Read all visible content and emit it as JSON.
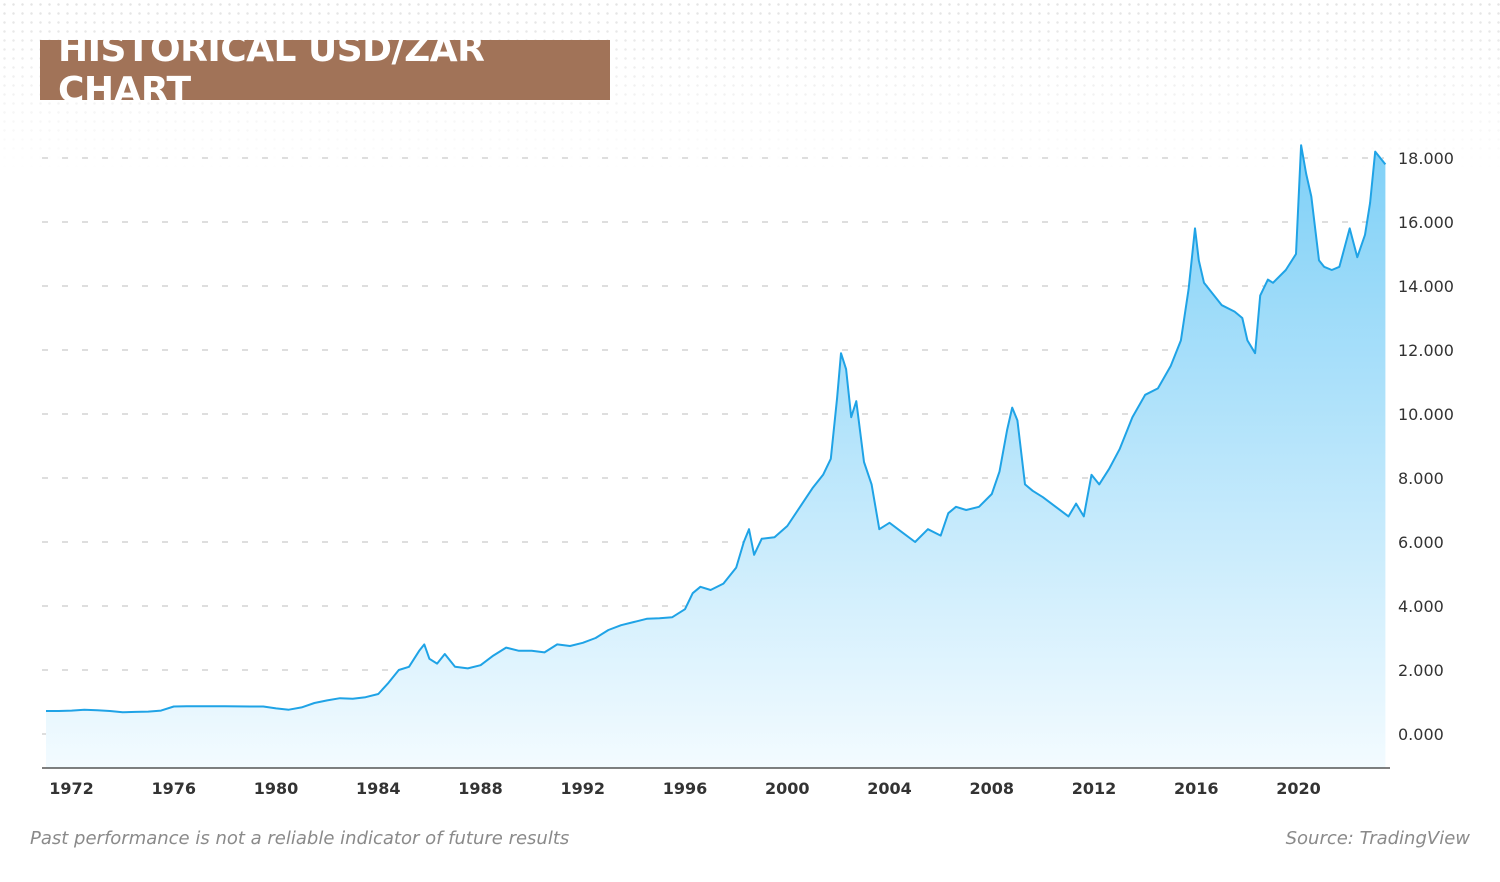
{
  "title": "HISTORICAL USD/ZAR CHART",
  "disclaimer": "Past performance is not a reliable indicator of future results",
  "source": "Source: TradingView",
  "colors": {
    "title_bg": "#a17358",
    "line": "#1fa3e6",
    "fill_top": "#7fd0f7",
    "fill_bottom": "#f3fbff",
    "grid": "#bdbdbd"
  },
  "chart_data": {
    "type": "area",
    "title": "HISTORICAL USD/ZAR CHART",
    "xlabel": "",
    "ylabel": "",
    "ylim": [
      0,
      18
    ],
    "xlim": [
      1971.0,
      2023.5
    ],
    "grid": "horizontal dashed",
    "legend": "none",
    "y_axis_position": "right",
    "yticks": [
      0,
      2,
      4,
      6,
      8,
      10,
      12,
      14,
      16,
      18
    ],
    "ytick_labels": [
      "0.000",
      "2.000",
      "4.000",
      "6.000",
      "8.000",
      "10.000",
      "12.000",
      "14.000",
      "16.000",
      "18.000"
    ],
    "xticks": [
      1972,
      1976,
      1980,
      1984,
      1988,
      1992,
      1996,
      2000,
      2004,
      2008,
      2012,
      2016,
      2020
    ],
    "xtick_labels": [
      "1972",
      "1976",
      "1980",
      "1984",
      "1988",
      "1992",
      "1996",
      "2000",
      "2004",
      "2008",
      "2012",
      "2016",
      "2020"
    ],
    "series": [
      {
        "x": [
          1971.0,
          1971.5,
          1972.0,
          1972.5,
          1973.0,
          1973.5,
          1974.0,
          1974.5,
          1975.0,
          1975.5,
          1976.0,
          1976.5,
          1977.0,
          1978.0,
          1979.0,
          1979.5,
          1980.0,
          1980.5,
          1981.0,
          1981.5,
          1982.0,
          1982.5,
          1983.0,
          1983.5,
          1984.0,
          1984.4,
          1984.8,
          1985.2,
          1985.6,
          1985.8,
          1986.0,
          1986.3,
          1986.6,
          1987.0,
          1987.5,
          1988.0,
          1988.5,
          1989.0,
          1989.5,
          1990.0,
          1990.5,
          1991.0,
          1991.5,
          1992.0,
          1992.5,
          1993.0,
          1993.5,
          1994.0,
          1994.5,
          1995.0,
          1995.5,
          1996.0,
          1996.3,
          1996.6,
          1997.0,
          1997.5,
          1998.0,
          1998.3,
          1998.5,
          1998.7,
          1999.0,
          1999.5,
          2000.0,
          2000.5,
          2001.0,
          2001.4,
          2001.7,
          2001.95,
          2002.1,
          2002.3,
          2002.5,
          2002.7,
          2003.0,
          2003.3,
          2003.6,
          2004.0,
          2004.5,
          2005.0,
          2005.5,
          2006.0,
          2006.3,
          2006.6,
          2007.0,
          2007.5,
          2008.0,
          2008.3,
          2008.6,
          2008.8,
          2009.0,
          2009.3,
          2009.6,
          2010.0,
          2010.5,
          2011.0,
          2011.3,
          2011.6,
          2011.9,
          2012.2,
          2012.6,
          2013.0,
          2013.5,
          2014.0,
          2014.5,
          2015.0,
          2015.4,
          2015.7,
          2015.95,
          2016.1,
          2016.3,
          2016.6,
          2017.0,
          2017.5,
          2017.8,
          2018.0,
          2018.3,
          2018.5,
          2018.8,
          2019.0,
          2019.5,
          2019.9,
          2020.1,
          2020.3,
          2020.5,
          2020.8,
          2021.0,
          2021.3,
          2021.6,
          2022.0,
          2022.3,
          2022.6,
          2022.8,
          2023.0,
          2023.2,
          2023.4
        ],
        "values": [
          0.72,
          0.72,
          0.73,
          0.76,
          0.74,
          0.72,
          0.68,
          0.69,
          0.7,
          0.73,
          0.86,
          0.87,
          0.87,
          0.87,
          0.86,
          0.86,
          0.8,
          0.76,
          0.83,
          0.97,
          1.05,
          1.12,
          1.1,
          1.15,
          1.25,
          1.6,
          2.0,
          2.1,
          2.6,
          2.8,
          2.35,
          2.2,
          2.5,
          2.1,
          2.05,
          2.15,
          2.45,
          2.7,
          2.6,
          2.6,
          2.55,
          2.8,
          2.75,
          2.85,
          3.0,
          3.25,
          3.4,
          3.5,
          3.6,
          3.62,
          3.65,
          3.9,
          4.4,
          4.6,
          4.5,
          4.7,
          5.2,
          6.0,
          6.4,
          5.6,
          6.1,
          6.15,
          6.5,
          7.1,
          7.7,
          8.1,
          8.6,
          10.5,
          11.9,
          11.4,
          9.9,
          10.4,
          8.5,
          7.8,
          6.4,
          6.6,
          6.3,
          6.0,
          6.4,
          6.2,
          6.9,
          7.1,
          7.0,
          7.1,
          7.5,
          8.2,
          9.5,
          10.2,
          9.8,
          7.8,
          7.6,
          7.4,
          7.1,
          6.8,
          7.2,
          6.8,
          8.1,
          7.8,
          8.3,
          8.9,
          9.9,
          10.6,
          10.8,
          11.5,
          12.3,
          13.9,
          15.8,
          14.8,
          14.1,
          13.8,
          13.4,
          13.2,
          13.0,
          12.3,
          11.9,
          13.7,
          14.2,
          14.1,
          14.5,
          15.0,
          18.4,
          17.5,
          16.8,
          14.8,
          14.6,
          14.5,
          14.6,
          15.8,
          14.9,
          15.6,
          16.6,
          18.2,
          18.0,
          17.8
        ]
      }
    ]
  }
}
